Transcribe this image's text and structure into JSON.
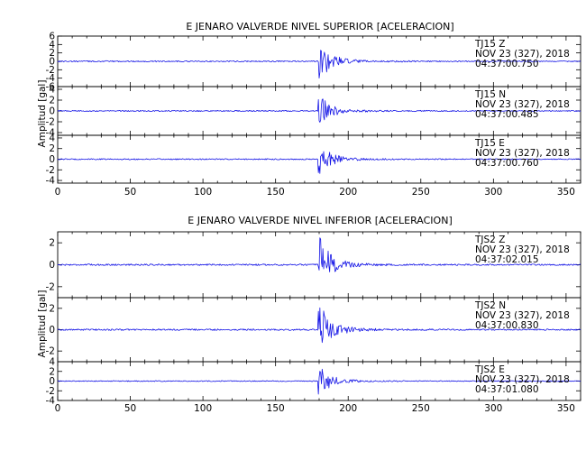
{
  "chart_data": [
    {
      "type": "line",
      "title": "E JENARO VALVERDE NIVEL SUPERIOR [ACELERACION]",
      "xlabel": "",
      "ylabel": "Amplitud [gal]",
      "xlim": [
        0,
        360
      ],
      "x_ticks": [
        "0",
        "50",
        "100",
        "150",
        "200",
        "250",
        "300",
        "350"
      ],
      "grid": false,
      "panels": [
        {
          "name": "TJ15 Z",
          "ylim": [
            -6,
            6
          ],
          "y_ticks": [
            "6",
            "4",
            "2",
            "0",
            "-2",
            "-4",
            "-6"
          ],
          "annotation": [
            "TJ15    Z",
            "NOV  23  (327),  2018",
            "04:37:00.750"
          ],
          "onset": 179,
          "peak": 5.5
        },
        {
          "name": "TJ15 N",
          "ylim": [
            -4.5,
            4.5
          ],
          "y_ticks": [
            "4",
            "2",
            "0",
            "-2",
            "-4"
          ],
          "annotation": [
            "TJ15    N",
            "NOV  23  (327),  2018",
            "04:37:00.485"
          ],
          "onset": 179,
          "peak": 3.3
        },
        {
          "name": "TJ15 E",
          "ylim": [
            -4.5,
            4.5
          ],
          "y_ticks": [
            "4",
            "2",
            "0",
            "-2",
            "-4"
          ],
          "annotation": [
            "TJ15    E",
            "NOV  23  (327),  2018",
            "04:37:00.760"
          ],
          "onset": 179,
          "peak": 3.5
        }
      ]
    },
    {
      "type": "line",
      "title": "E JENARO VALVERDE NIVEL INFERIOR [ACELERACION]",
      "xlabel": "",
      "ylabel": "Amplitud [gal]",
      "xlim": [
        0,
        360
      ],
      "x_ticks": [
        "0",
        "50",
        "100",
        "150",
        "200",
        "250",
        "300",
        "350"
      ],
      "grid": false,
      "panels": [
        {
          "name": "TJS2 Z",
          "ylim": [
            -3,
            3
          ],
          "y_ticks": [
            "2",
            "0",
            "-2"
          ],
          "annotation": [
            "TJS2    Z",
            "NOV  23  (327),  2018",
            "04:37:02.015"
          ],
          "onset": 179,
          "peak": 2.9
        },
        {
          "name": "TJS2 N",
          "ylim": [
            -3,
            3
          ],
          "y_ticks": [
            "2",
            "0",
            "-2"
          ],
          "annotation": [
            "TJS2    N",
            "NOV  23  (327),  2018",
            "04:37:00.830"
          ],
          "onset": 179,
          "peak": 2.9
        },
        {
          "name": "TJS2 E",
          "ylim": [
            -4,
            4
          ],
          "y_ticks": [
            "4",
            "2",
            "0",
            "-2",
            "-4"
          ],
          "annotation": [
            "TJS2    E",
            "NOV  23  (327),  2018",
            "04:37:01.080"
          ],
          "onset": 179,
          "peak": 3.6
        }
      ]
    }
  ],
  "colors": {
    "trace": "#1515e6",
    "axes": "#000000",
    "background": "#ffffff"
  }
}
